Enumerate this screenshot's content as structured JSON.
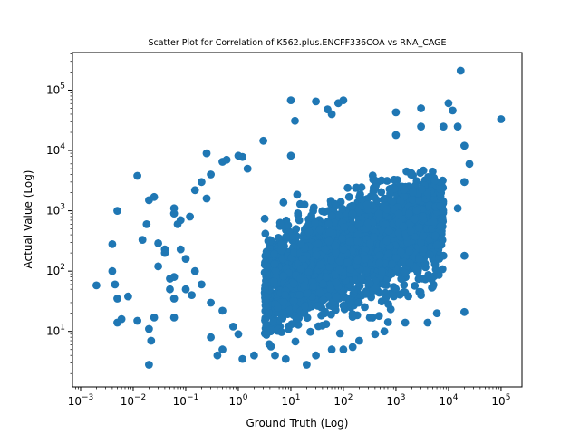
{
  "chart_data": {
    "type": "scatter",
    "title": "Scatter Plot for Correlation of K562.plus.ENCFF336COA vs RNA_CAGE",
    "xlabel": "Ground Truth (Log)",
    "ylabel": "Actual Value (Log)",
    "xscale": "log",
    "yscale": "log",
    "xlim": [
      0.0007,
      250000
    ],
    "ylim": [
      1.2,
      420000
    ],
    "xticks": [
      {
        "value": 0.001,
        "base": "10",
        "exp": "−3"
      },
      {
        "value": 0.01,
        "base": "10",
        "exp": "−2"
      },
      {
        "value": 0.1,
        "base": "10",
        "exp": "−1"
      },
      {
        "value": 1,
        "base": "10",
        "exp": "0"
      },
      {
        "value": 10,
        "base": "10",
        "exp": "1"
      },
      {
        "value": 100,
        "base": "10",
        "exp": "2"
      },
      {
        "value": 1000,
        "base": "10",
        "exp": "3"
      },
      {
        "value": 10000,
        "base": "10",
        "exp": "4"
      },
      {
        "value": 100000,
        "base": "10",
        "exp": "5"
      }
    ],
    "yticks": [
      {
        "value": 10,
        "base": "10",
        "exp": "1"
      },
      {
        "value": 100,
        "base": "10",
        "exp": "2"
      },
      {
        "value": 1000,
        "base": "10",
        "exp": "3"
      },
      {
        "value": 10000,
        "base": "10",
        "exp": "4"
      },
      {
        "value": 100000,
        "base": "10",
        "exp": "5"
      }
    ],
    "grid": false,
    "marker_color": "#1f77b4",
    "points": [
      [
        0.002,
        58
      ],
      [
        0.004,
        280
      ],
      [
        0.004,
        100
      ],
      [
        0.0045,
        60
      ],
      [
        0.005,
        1000
      ],
      [
        0.005,
        35
      ],
      [
        0.005,
        14
      ],
      [
        0.006,
        16
      ],
      [
        0.008,
        38
      ],
      [
        0.012,
        3800
      ],
      [
        0.012,
        15
      ],
      [
        0.015,
        330
      ],
      [
        0.018,
        600
      ],
      [
        0.02,
        1500
      ],
      [
        0.02,
        11
      ],
      [
        0.022,
        7
      ],
      [
        0.02,
        2.8
      ],
      [
        0.025,
        1700
      ],
      [
        0.025,
        17
      ],
      [
        0.03,
        120
      ],
      [
        0.03,
        290
      ],
      [
        0.04,
        230
      ],
      [
        0.04,
        200
      ],
      [
        0.05,
        50
      ],
      [
        0.05,
        75
      ],
      [
        0.06,
        17
      ],
      [
        0.06,
        35
      ],
      [
        0.06,
        80
      ],
      [
        0.06,
        900
      ],
      [
        0.06,
        1100
      ],
      [
        0.07,
        600
      ],
      [
        0.08,
        700
      ],
      [
        0.08,
        230
      ],
      [
        0.1,
        50
      ],
      [
        0.1,
        160
      ],
      [
        0.13,
        40
      ],
      [
        0.15,
        2200
      ],
      [
        0.2,
        3000
      ],
      [
        0.25,
        9000
      ],
      [
        0.3,
        4000
      ],
      [
        0.5,
        6500
      ],
      [
        0.6,
        7000
      ],
      [
        1.0,
        8200
      ],
      [
        1.2,
        7800
      ],
      [
        1.5,
        5000
      ],
      [
        3,
        14500
      ],
      [
        10,
        8200
      ],
      [
        10,
        68000
      ],
      [
        12,
        31000
      ],
      [
        30,
        65000
      ],
      [
        50,
        48000
      ],
      [
        60,
        40000
      ],
      [
        80,
        61000
      ],
      [
        100,
        68000
      ],
      [
        1000,
        43000
      ],
      [
        3000,
        50000
      ],
      [
        10000,
        61000
      ],
      [
        12000,
        46000
      ],
      [
        17000,
        210000
      ],
      [
        100000,
        33000
      ],
      [
        20000,
        21
      ],
      [
        20000,
        180
      ],
      [
        1000,
        18000
      ],
      [
        3000,
        25000
      ],
      [
        8000,
        25000
      ],
      [
        15000,
        25000
      ],
      [
        20000,
        12000
      ],
      [
        25000,
        6000
      ],
      [
        20000,
        3000
      ],
      [
        0.3,
        8
      ],
      [
        0.4,
        4
      ],
      [
        0.5,
        5
      ],
      [
        1.2,
        3.5
      ],
      [
        2,
        4
      ],
      [
        5,
        4
      ],
      [
        8,
        3.5
      ],
      [
        20,
        2.8
      ],
      [
        30,
        4
      ],
      [
        60,
        5
      ],
      [
        100,
        5
      ],
      [
        150,
        5.5
      ],
      [
        200,
        7
      ],
      [
        400,
        9
      ],
      [
        600,
        10
      ],
      [
        1500,
        14
      ],
      [
        4000,
        14
      ],
      [
        6000,
        20
      ],
      [
        5000,
        55
      ],
      [
        3000,
        40
      ],
      [
        8000,
        180
      ],
      [
        15000,
        1100
      ],
      [
        0.3,
        30
      ],
      [
        0.5,
        22
      ],
      [
        0.8,
        12
      ],
      [
        1,
        9
      ],
      [
        0.2,
        60
      ],
      [
        0.15,
        100
      ],
      [
        0.12,
        800
      ],
      [
        0.25,
        1600
      ]
    ]
  }
}
